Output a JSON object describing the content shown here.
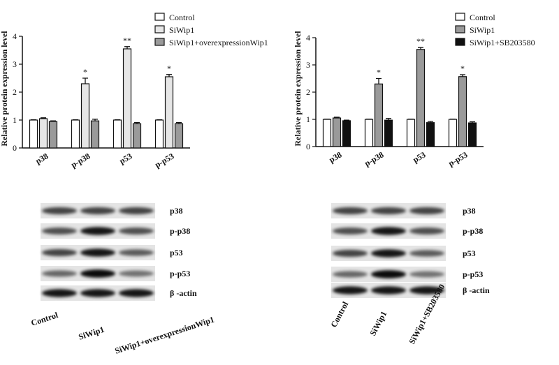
{
  "chart_data": [
    {
      "type": "bar",
      "ylabel": "Relative protein expression level",
      "categories": [
        "p38",
        "p-p38",
        "p53",
        "p-p53"
      ],
      "series": [
        {
          "name": "Control",
          "color": "#ffffff",
          "values": [
            1,
            1,
            1,
            1
          ],
          "errors": [
            0.01,
            0.01,
            0.01,
            0.01
          ]
        },
        {
          "name": "SiWip1",
          "color": "#e6e6e6",
          "values": [
            1.05,
            2.3,
            3.55,
            2.55
          ],
          "errors": [
            0.03,
            0.2,
            0.08,
            0.08
          ],
          "significance": [
            null,
            "*",
            "**",
            "*"
          ]
        },
        {
          "name": "SiWip1+overexpressionWip1",
          "color": "#9a9a9a",
          "values": [
            0.95,
            0.97,
            0.87,
            0.87
          ],
          "errors": [
            0.02,
            0.06,
            0.04,
            0.04
          ]
        }
      ],
      "ylim": [
        0,
        4
      ],
      "yticks": [
        0,
        1,
        2,
        3,
        4
      ]
    },
    {
      "type": "bar",
      "ylabel": "Relative protein expression level",
      "categories": [
        "p38",
        "p-p38",
        "p53",
        "p-p53"
      ],
      "series": [
        {
          "name": "Control",
          "color": "#ffffff",
          "values": [
            1,
            1,
            1,
            1
          ],
          "errors": [
            0.01,
            0.01,
            0.01,
            0.01
          ]
        },
        {
          "name": "SiWip1",
          "color": "#9a9a9a",
          "values": [
            1.05,
            2.3,
            3.57,
            2.57
          ],
          "errors": [
            0.03,
            0.2,
            0.07,
            0.07
          ],
          "significance": [
            null,
            "*",
            "**",
            "*"
          ]
        },
        {
          "name": "SiWip1+SB203580",
          "color": "#111111",
          "values": [
            0.95,
            0.97,
            0.88,
            0.87
          ],
          "errors": [
            0.02,
            0.06,
            0.04,
            0.04
          ]
        }
      ],
      "ylim": [
        0,
        4
      ],
      "yticks": [
        0,
        1,
        2,
        3,
        4
      ]
    }
  ],
  "blots": [
    {
      "rows": [
        "p38",
        "p-p38",
        "p53",
        "p-p53",
        "β -actin"
      ],
      "lanes": [
        "Control",
        "SiWip1",
        "SiWip1+overexpressionWip1"
      ]
    },
    {
      "rows": [
        "p38",
        "p-p38",
        "p53",
        "p-p53",
        "β -actin"
      ],
      "lanes": [
        "Control",
        "SiWip1",
        "SiWip1+SB203580"
      ]
    }
  ]
}
